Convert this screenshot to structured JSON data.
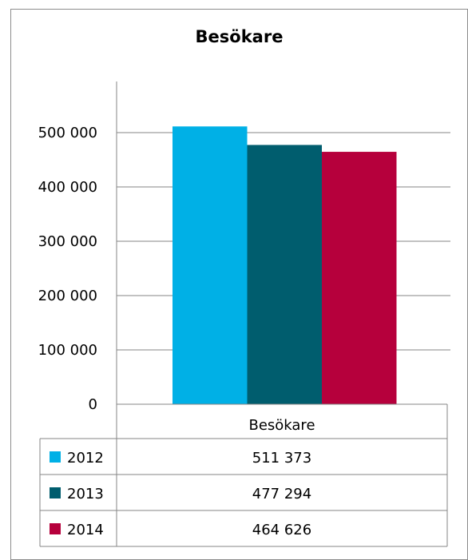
{
  "chart_data": {
    "type": "bar",
    "title": "Besökare",
    "categories": [
      "Besökare"
    ],
    "series": [
      {
        "name": "2012",
        "values": [
          511373
        ],
        "value_label": "511 373",
        "color": "#00b0e6"
      },
      {
        "name": "2013",
        "values": [
          477294
        ],
        "value_label": "477 294",
        "color": "#005d6e"
      },
      {
        "name": "2014",
        "values": [
          464626
        ],
        "value_label": "464 626",
        "color": "#b6003c"
      }
    ],
    "yticks": [
      {
        "value": 0,
        "label": "0"
      },
      {
        "value": 100000,
        "label": "100 000"
      },
      {
        "value": 200000,
        "label": "200 000"
      },
      {
        "value": 300000,
        "label": "300 000"
      },
      {
        "value": 400000,
        "label": "400 000"
      },
      {
        "value": 500000,
        "label": "500 000"
      }
    ],
    "ylim": [
      0,
      600000
    ],
    "grid": true,
    "legend": "data-table",
    "xlabel": "",
    "ylabel": ""
  }
}
